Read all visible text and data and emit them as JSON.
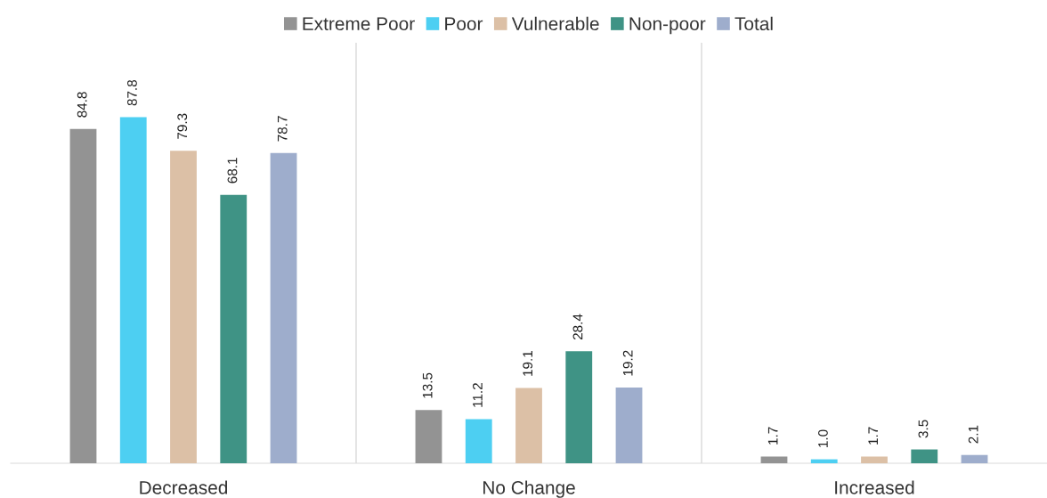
{
  "chart_data": {
    "type": "bar",
    "categories": [
      "Decreased",
      "No Change",
      "Increased"
    ],
    "series": [
      {
        "name": "Extreme Poor",
        "color": "#939393",
        "values": [
          84.8,
          13.5,
          1.7
        ],
        "value_labels": [
          "84.8",
          "13.5",
          "1.7"
        ]
      },
      {
        "name": "Poor",
        "color": "#4dcff2",
        "values": [
          87.8,
          11.2,
          1.0
        ],
        "value_labels": [
          "87.8",
          "11.2",
          "1.0"
        ]
      },
      {
        "name": "Vulnerable",
        "color": "#dcc0a6",
        "values": [
          79.3,
          19.1,
          1.7
        ],
        "value_labels": [
          "79.3",
          "19.1",
          "1.7"
        ]
      },
      {
        "name": "Non-poor",
        "color": "#3f9385",
        "values": [
          68.1,
          28.4,
          3.5
        ],
        "value_labels": [
          "68.1",
          "28.4",
          "3.5"
        ]
      },
      {
        "name": "Total",
        "color": "#9eadcc",
        "values": [
          78.7,
          19.2,
          2.1
        ],
        "value_labels": [
          "78.7",
          "19.2",
          "2.1"
        ]
      }
    ],
    "grid": "x",
    "legend": "top"
  }
}
